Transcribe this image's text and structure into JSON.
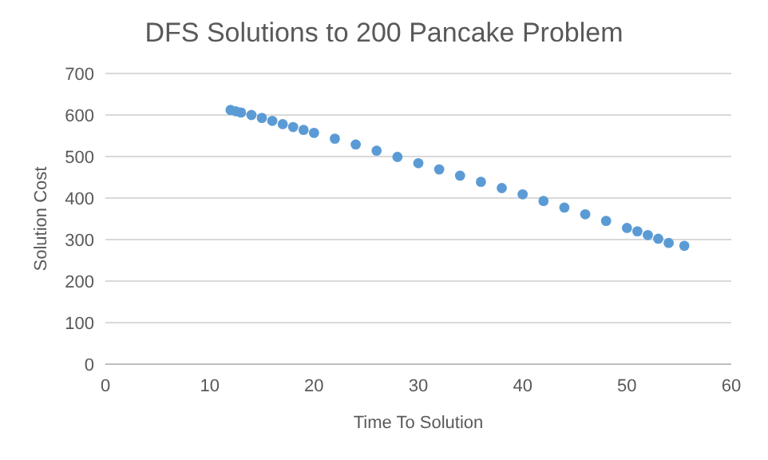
{
  "chart_data": {
    "type": "scatter",
    "title": "DFS Solutions to 200 Pancake Problem",
    "xlabel": "Time To Solution",
    "ylabel": "Solution Cost",
    "series": [
      {
        "color": "#5b9bd5",
        "x": [
          12,
          12.5,
          13,
          14,
          15,
          16,
          17,
          18,
          19,
          20,
          22,
          24,
          26,
          28,
          30,
          32,
          34,
          36,
          38,
          40,
          42,
          44,
          46,
          48,
          50,
          51,
          52,
          53,
          54,
          55.5
        ],
        "values": [
          612,
          609,
          606,
          600,
          593,
          586,
          578,
          571,
          564,
          557,
          543,
          529,
          514,
          499,
          484,
          469,
          454,
          439,
          424,
          409,
          393,
          377,
          361,
          345,
          328,
          320,
          311,
          302,
          292,
          285
        ]
      }
    ],
    "xlim": [
      0,
      60
    ],
    "xticks": [
      0,
      10,
      20,
      30,
      40,
      50,
      60
    ],
    "ylim": [
      0,
      700
    ],
    "yticks": [
      0,
      100,
      200,
      300,
      400,
      500,
      600,
      700
    ],
    "grid": "y",
    "marker": "circle"
  }
}
